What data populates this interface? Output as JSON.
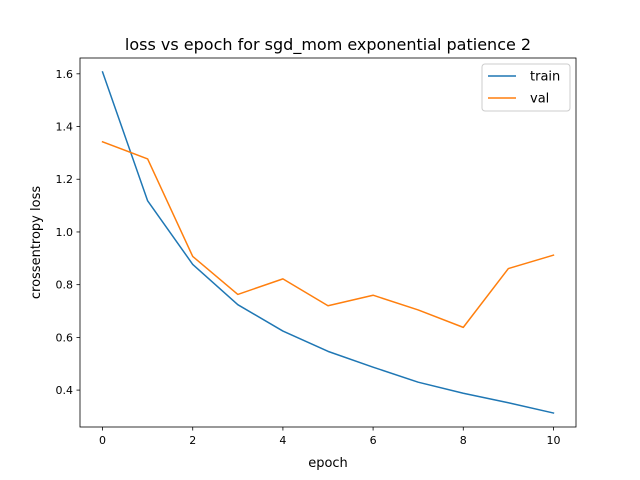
{
  "chart_data": {
    "type": "line",
    "title": "loss vs epoch for sgd_mom exponential patience 2",
    "xlabel": "epoch",
    "ylabel": "crossentropy loss",
    "xlim": [
      -0.5,
      10.5
    ],
    "ylim": [
      0.26,
      1.66
    ],
    "xticks": [
      0,
      2,
      4,
      6,
      8,
      10
    ],
    "yticks": [
      0.4,
      0.6,
      0.8,
      1.0,
      1.2,
      1.4,
      1.6
    ],
    "ytick_labels": [
      "0.4",
      "0.6",
      "0.8",
      "1.0",
      "1.2",
      "1.4",
      "1.6"
    ],
    "grid": false,
    "legend_position": "top-right",
    "x": [
      0,
      1,
      2,
      3,
      4,
      5,
      6,
      7,
      8,
      9,
      10
    ],
    "series": [
      {
        "name": "train",
        "color": "#1f77b4",
        "values": [
          1.607,
          1.118,
          0.877,
          0.724,
          0.624,
          0.547,
          0.487,
          0.43,
          0.388,
          0.352,
          0.313
        ]
      },
      {
        "name": "val",
        "color": "#ff7f0e",
        "values": [
          1.342,
          1.277,
          0.907,
          0.763,
          0.822,
          0.72,
          0.76,
          0.704,
          0.638,
          0.861,
          0.912
        ]
      }
    ]
  }
}
